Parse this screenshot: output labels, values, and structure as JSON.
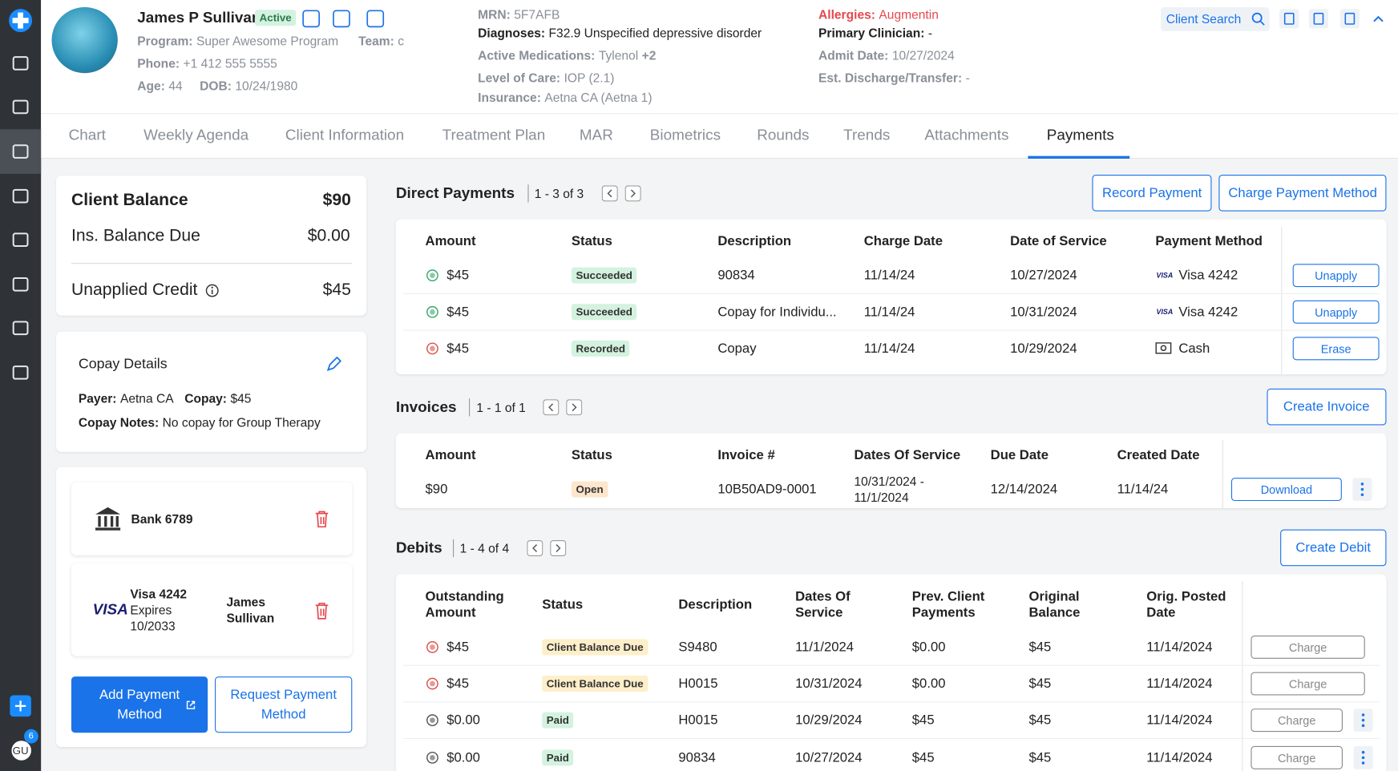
{
  "sidebar": {
    "badge": "6",
    "avatar": "GU"
  },
  "header": {
    "name": "James P Sullivan",
    "status": "Active",
    "program_label": "Program:",
    "program": "Super Awesome Program",
    "team_label": "Team:",
    "team": "c",
    "phone_label": "Phone:",
    "phone": "+1 412 555 5555",
    "age_label": "Age:",
    "age": "44",
    "dob_label": "DOB:",
    "dob": "10/24/1980",
    "mrn_label": "MRN:",
    "mrn": "5F7AFB",
    "diagnoses_label": "Diagnoses:",
    "diagnoses": "F32.9 Unspecified depressive disorder",
    "meds_label": "Active Medications:",
    "meds": "Tylenol",
    "meds_more": "+2",
    "loc_label": "Level of Care:",
    "loc": "IOP (2.1)",
    "insurance_label": "Insurance:",
    "insurance": "Aetna CA (Aetna 1)",
    "allergies_label": "Allergies:",
    "allergies": "Augmentin",
    "clinician_label": "Primary Clinician:",
    "clinician": "-",
    "admit_label": "Admit Date:",
    "admit": "10/27/2024",
    "discharge_label": "Est. Discharge/Transfer:",
    "discharge": "-",
    "search": "Client Search"
  },
  "tabs": [
    "Chart",
    "Weekly Agenda",
    "Client Information",
    "Treatment Plan",
    "MAR",
    "Biometrics",
    "Rounds",
    "Trends",
    "Attachments",
    "Payments"
  ],
  "balance": {
    "client_balance_label": "Client Balance",
    "client_balance": "$90",
    "ins_label": "Ins. Balance Due",
    "ins": "$0.00",
    "unapplied_label": "Unapplied Credit",
    "unapplied": "$45"
  },
  "copay": {
    "title": "Copay Details",
    "payer_label": "Payer:",
    "payer": "Aetna CA",
    "copay_label": "Copay:",
    "copay": "$45",
    "notes_label": "Copay Notes:",
    "notes": "No copay for Group Therapy"
  },
  "methods": {
    "bank": "Bank 6789",
    "card": {
      "brand": "VISA",
      "name": "Visa 4242",
      "expires": "Expires",
      "date": "10/2033",
      "holder": "James Sullivan"
    },
    "add": "Add Payment Method",
    "request": "Request Payment Method"
  },
  "direct_payments": {
    "title": "Direct Payments",
    "count": "1 - 3 of 3",
    "buttons": [
      "Record Payment",
      "Charge Payment Method"
    ],
    "columns": [
      "Amount",
      "Status",
      "Description",
      "Charge Date",
      "Date of Service",
      "Payment Method"
    ],
    "rows": [
      {
        "cells": [
          "$45",
          "Succeeded",
          "90834",
          "11/14/24",
          "10/27/2024",
          "Visa 4242"
        ],
        "card_brand": "VISA",
        "action": "Unapply",
        "status_color": "#d3f2df",
        "icon_color": "#3aa76d"
      },
      {
        "cells": [
          "$45",
          "Succeeded",
          "Copay for Individu...",
          "11/14/24",
          "10/31/2024",
          "Visa 4242"
        ],
        "card_brand": "VISA",
        "action": "Unapply",
        "status_color": "#d3f2df",
        "icon_color": "#3aa76d"
      },
      {
        "cells": [
          "$45",
          "Recorded",
          "Copay",
          "11/14/24",
          "10/29/2024",
          "Cash"
        ],
        "action": "Erase",
        "status_color": "#d3f2df",
        "icon_color": "#d9534f"
      }
    ]
  },
  "invoices": {
    "title": "Invoices",
    "count": "1 - 1 of 1",
    "buttons": [
      "Create Invoice"
    ],
    "columns": [
      "Amount",
      "Status",
      "Invoice #",
      "Dates Of Service",
      "Due Date",
      "Created Date"
    ],
    "rows": [
      {
        "cells": [
          "$90",
          "Open",
          "10B50AD9-0001",
          "10/31/2024 - 11/1/2024",
          "12/14/2024",
          "11/14/24"
        ],
        "action": "Download",
        "menu": true,
        "status_color": "#fde6cc"
      }
    ]
  },
  "debits": {
    "title": "Debits",
    "count": "1 - 4 of 4",
    "buttons": [
      "Create Debit"
    ],
    "columns": [
      "Outstanding Amount",
      "Status",
      "Description",
      "Dates Of Service",
      "Prev. Client Payments",
      "Original Balance",
      "Orig. Posted Date"
    ],
    "rows": [
      {
        "cells": [
          "$45",
          "Client Balance Due",
          "S9480",
          "11/1/2024",
          "$0.00",
          "$45",
          "11/14/2024"
        ],
        "action": "Charge",
        "status_color": "#fcefc9",
        "icon_color": "#d9534f"
      },
      {
        "cells": [
          "$45",
          "Client Balance Due",
          "H0015",
          "10/31/2024",
          "$0.00",
          "$45",
          "11/14/2024"
        ],
        "action": "Charge",
        "status_color": "#fcefc9",
        "icon_color": "#d9534f"
      },
      {
        "cells": [
          "$0.00",
          "Paid",
          "H0015",
          "10/29/2024",
          "$45",
          "$45",
          "11/14/2024"
        ],
        "action": "Charge",
        "menu": true,
        "status_color": "#d3f2df",
        "icon_color": "#555"
      },
      {
        "cells": [
          "$0.00",
          "Paid",
          "90834",
          "10/27/2024",
          "$45",
          "$45",
          "11/14/2024"
        ],
        "action": "Charge",
        "menu": true,
        "status_color": "#d3f2df",
        "icon_color": "#555"
      }
    ]
  }
}
